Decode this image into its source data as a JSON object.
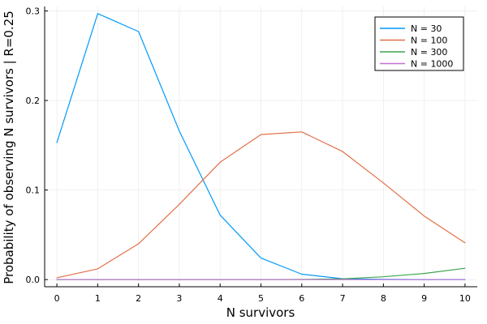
{
  "chart_data": {
    "type": "line",
    "title": "",
    "xlabel": "N survivors",
    "ylabel": "Probability of observing N survivors | R=0.25",
    "xlim": [
      -0.3,
      10.3
    ],
    "ylim": [
      -0.008,
      0.305
    ],
    "x_ticks": [
      0,
      1,
      2,
      3,
      4,
      5,
      6,
      7,
      8,
      9,
      10
    ],
    "y_ticks": [
      0.0,
      0.1,
      0.2,
      0.3
    ],
    "y_tick_labels": [
      "0.0",
      "0.1",
      "0.2",
      "0.3"
    ],
    "grid": true,
    "legend_position": "top-right",
    "x": [
      0,
      1,
      2,
      3,
      4,
      5,
      6,
      7,
      8,
      9,
      10
    ],
    "series": [
      {
        "name": "N = 30",
        "color": "#009AFA",
        "values": [
          0.153,
          0.297,
          0.277,
          0.166,
          0.072,
          0.024,
          0.006,
          0.001,
          0.0002,
          0.0,
          0.0
        ]
      },
      {
        "name": "N = 100",
        "color": "#E26F46",
        "values": [
          0.002,
          0.012,
          0.04,
          0.084,
          0.131,
          0.162,
          0.165,
          0.143,
          0.108,
          0.071,
          0.041
        ]
      },
      {
        "name": "N = 300",
        "color": "#3EA44E",
        "values": [
          0.0,
          0.0,
          0.0,
          0.0,
          0.0,
          0.0,
          0.0001,
          0.0009,
          0.0031,
          0.0068,
          0.0126
        ]
      },
      {
        "name": "N = 1000",
        "color": "#C271D2",
        "values": [
          0.0,
          0.0,
          0.0,
          0.0,
          0.0,
          0.0,
          0.0,
          0.0,
          0.0,
          0.0,
          0.0
        ]
      }
    ]
  }
}
